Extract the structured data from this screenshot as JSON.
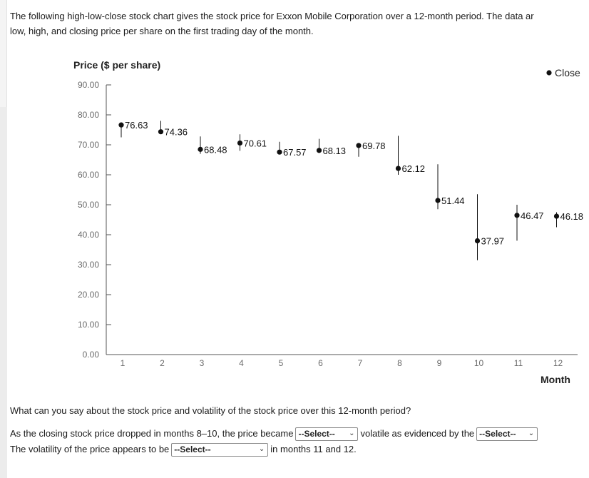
{
  "intro": {
    "line1": "The following high-low-close stock chart gives the stock price for Exxon Mobile Corporation over a 12-month period. The data ar",
    "line2": "low, high, and closing price per share on the first trading day of the month."
  },
  "chart_data": {
    "type": "high-low-close",
    "ylabel": "Price ($ per share)",
    "xlabel": "Month",
    "ylim": [
      0,
      90
    ],
    "yticks": [
      "90.00",
      "80.00",
      "70.00",
      "60.00",
      "50.00",
      "40.00",
      "30.00",
      "20.00",
      "10.00",
      "0.00"
    ],
    "xticks": [
      "1",
      "2",
      "3",
      "4",
      "5",
      "6",
      "7",
      "8",
      "9",
      "10",
      "11",
      "12"
    ],
    "legend": {
      "label": "Close",
      "position": "top-right"
    },
    "series": [
      {
        "month": 1,
        "low": 72.5,
        "high": 77.5,
        "close": 76.63,
        "label": "76.63"
      },
      {
        "month": 2,
        "low": 74.0,
        "high": 78.0,
        "close": 74.36,
        "label": "74.36"
      },
      {
        "month": 3,
        "low": 67.0,
        "high": 72.8,
        "close": 68.48,
        "label": "68.48"
      },
      {
        "month": 4,
        "low": 68.0,
        "high": 73.5,
        "close": 70.61,
        "label": "70.61"
      },
      {
        "month": 5,
        "low": 67.0,
        "high": 71.0,
        "close": 67.57,
        "label": "67.57"
      },
      {
        "month": 6,
        "low": 67.5,
        "high": 72.0,
        "close": 68.13,
        "label": "68.13"
      },
      {
        "month": 7,
        "low": 66.0,
        "high": 70.0,
        "close": 69.78,
        "label": "69.78"
      },
      {
        "month": 8,
        "low": 60.0,
        "high": 73.0,
        "close": 62.12,
        "label": "62.12"
      },
      {
        "month": 9,
        "low": 48.5,
        "high": 63.5,
        "close": 51.44,
        "label": "51.44"
      },
      {
        "month": 10,
        "low": 31.5,
        "high": 53.5,
        "close": 37.97,
        "label": "37.97"
      },
      {
        "month": 11,
        "low": 38.0,
        "high": 50.0,
        "close": 46.47,
        "label": "46.47"
      },
      {
        "month": 12,
        "low": 42.5,
        "high": 47.5,
        "close": 46.18,
        "label": "46.18"
      }
    ]
  },
  "question": {
    "prompt": "What can you say about the stock price and volatility of the stock price over this 12-month period?",
    "s1_before": "As the closing stock price dropped in months 8–10, the price became",
    "s1_select": "--Select--",
    "s1_after": "volatile as evidenced by the",
    "s2_select": "--Select--",
    "s3_before": "The volatility of the price appears to be",
    "s3_select": "--Select--",
    "s3_after": "in months 11 and 12."
  }
}
